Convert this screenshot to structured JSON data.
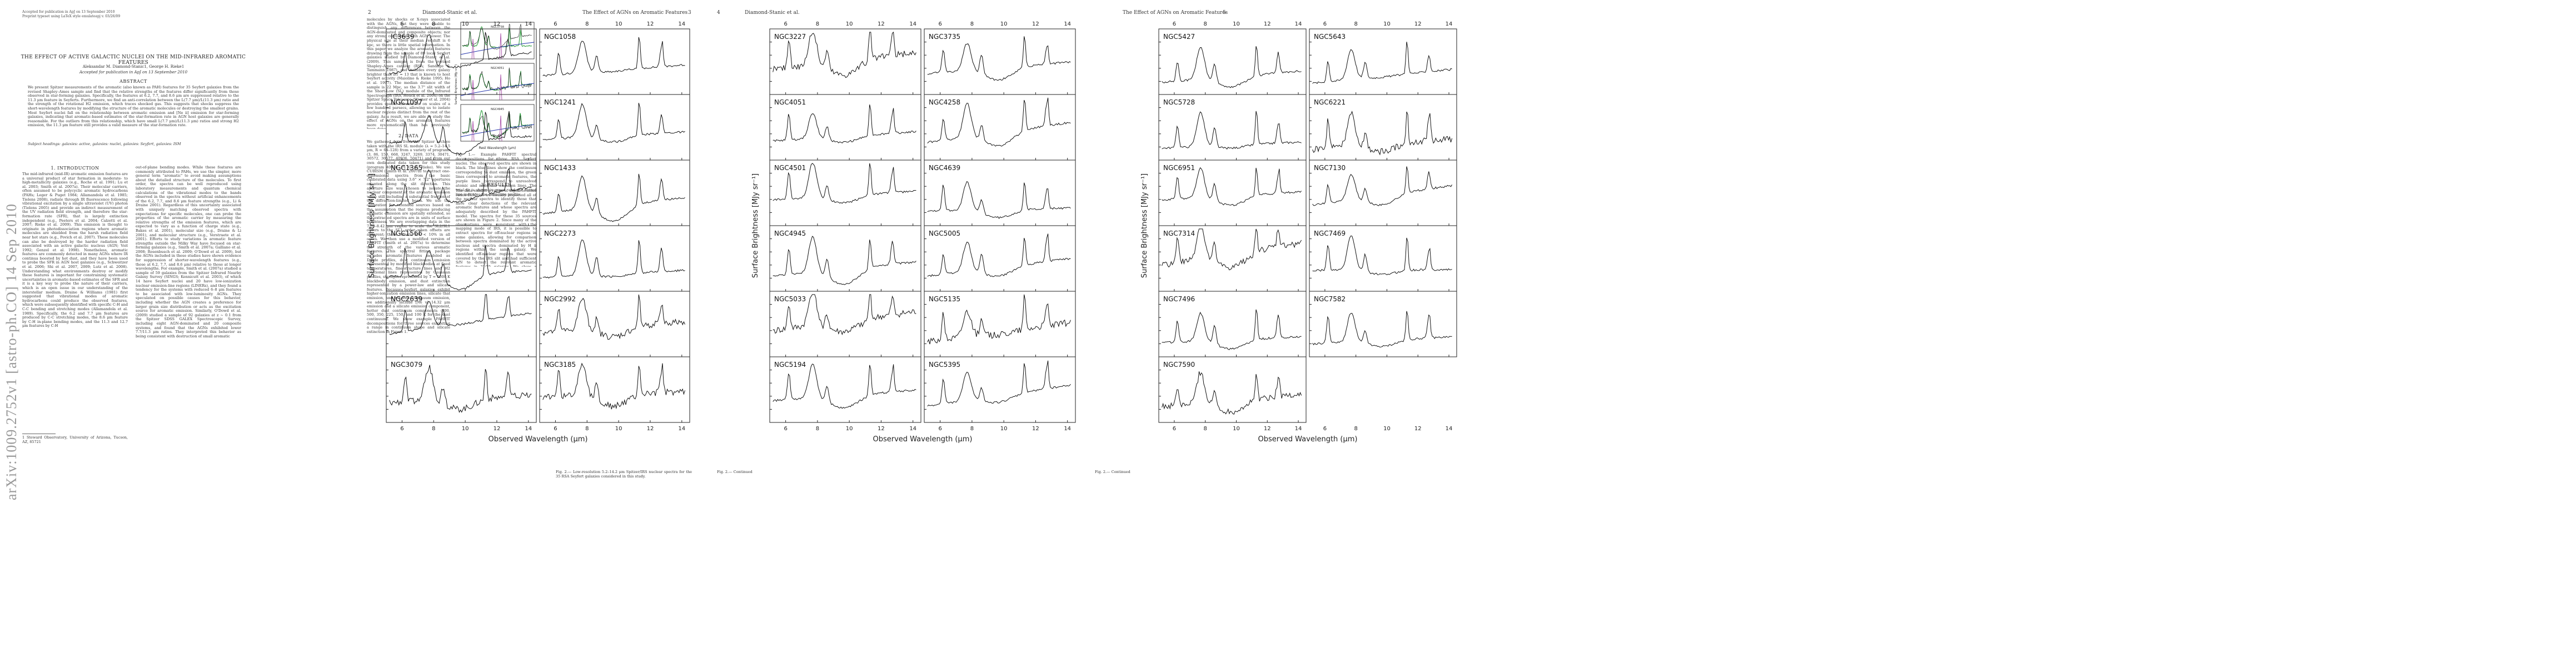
{
  "page1": {
    "accepted": "Accepted for publication in ApJ on 13 September 2010",
    "preprint": "Preprint typeset using LaTeX style emulateapj v. 03/26/09",
    "title": "THE EFFECT OF ACTIVE GALACTIC NUCLEI ON THE MID-INFRARED AROMATIC FEATURES",
    "authors": "Aleksandar M. Diamond-Stanic1, George H. Rieke1",
    "accepted_line": "Accepted for publication in ApJ on 13 September 2010",
    "abstract_heading": "ABSTRACT",
    "abstract": "We present Spitzer measurements of the aromatic (also known as PAH) features for 35 Seyfert galaxies from the revised Shapley–Ames sample and find that the relative strengths of the features differ significantly from those observed in star-forming galaxies. Specifically, the features at 6.2, 7.7, and 8.6 μm are suppressed relative to the 11.3 μm feature in Seyferts. Furthermore, we find an anti-correlation between the L(7.7 μm)/L(11.3 μm) ratio and the strength of the rotational H2 emission, which traces shocked gas. This suggests that shocks suppress the short-wavelength features by modifying the structure of the aromatic molecules or destroying the smallest grains. Most Seyfert nuclei fall on the relationship between aromatic emission and [Ne ii] emission for star-forming galaxies, indicating that aromatic-based estimates of the star-formation rate in AGN host galaxies are generally reasonable. For the outliers from this relationship, which have small L(7.7 μm)/L(11.3 μm) ratios and strong H2 emission, the 11.3 μm feature still provides a valid measure of the star-formation rate.",
    "keywords": "Subject headings: galaxies: active, galaxies: nuclei, galaxies: Seyfert, galaxies: ISM",
    "sec1_heading": "1. INTRODUCTION",
    "sec1_col1": "The mid-infrared (mid-IR) aromatic emission features are a universal product of star formation in moderate- to high-metallicity galaxies (e.g., Roche et al. 1991; Lu et al. 2003; Smith et al. 2007a). Their molecular carriers, often assumed to be polycyclic aromatic hydrocarbons (PAHs; Leger & Puget 1984; Allamandola et al. 1985; Tielens 2008), radiate through IR fluorescence following vibrational excitation by a single ultraviolet (UV) photon (Tielens 2005) and provide an indirect measurement of the UV radiation field strength, and therefore the star-formation rate (SFR), that is largely extinction independent (e.g., Peeters et al. 2004; Calzetti et al. 2007; Rieke et al. 2009). This emission is thought to originate in photodissociation regions where aromatic molecules are shielded from the harsh radiation field near hot stars (e.g., Povich et al. 2007). These molecules can also be destroyed by the harder radiation field associated with an active galactic nucleus (AGN; Voit 1992; Genzel et al. 1998). Nonetheless, aromatic features are commonly detected in many AGNs where IR continua boosted by hot dust, and they have been used to probe the SFR in AGN host galaxies (e.g., Schweitzer et al. 2006; Shi et al. 2007, 2009; Lutz et al. 2008). Understanding what environments destroy or modify these features is important for constraining systematic uncertainties in aromatic-based estimates of the SFR and it is a key way to probe the nature of their carriers, which is an open issue in our understanding of the interstellar medium. Draine & Williams (1981) first suggested that vibrational modes of aromatic hydrocarbons could produce the observed features, which were subsequently identified with specific C-H and C-C bending and stretching modes (Allamandola et al. 1989). Specifically, the 6.2 and 7.7 μm features are produced by C-C stretching modes, the 8.6 μm feature by C-H in-plane bending modes, and the 11.3 and 12.7 μm features by C-H",
    "sec1_col2": "out-of-plane bending modes. While these features are commonly attributed to PAHs, we use the simpler, more general term \"aromatic\" to avoid making assumptions about the detailed structure of the molecules. To first order, the spectra can be well reproduced using laboratory measurements and quantum chemical calculations of the vibrational modes to the bands observed in the spectra without artificial enhancements of the 6.2, 7.7, and 8.6 μm feature strengths (e.g., Li & Draine 2001). Regardless of this uncertainty associated with uniquely matching observed spectra with expectations for specific molecules, one can probe the properties of the aromatic carrier by measuring the relative strengths of the emission features, which are expected to vary as a function of charge state (e.g., Bakes et al. 2001), molecular size (e.g., Draine & Li 2001), and molecular structure (e.g., Verstraete et al. 2001). Efforts to study variations in aromatic feature strengths outside the Milky Way have focused on star-forming galaxies (e.g., Smith et al. 2007a; Galliano et al. 2008; Rosenbusch et al. 2009; O'Dowd et al. 2009), but the AGNs included in these studies have shown evidence for suppression of shorter-wavelength features (e.g., those at 6.2, 7.7, and 8.6 μm) relative to those at longer wavelengths. For example, Smith et al. (2007a) studied a sample of 59 galaxies from the Spitzer Infrared Nearby Galaxy Survey (SINGS; Kennicutt et al. 2003), of which 14 have Seyfert nuclei and 20 have low-ionization nuclear emission-line regions (LINERs), and they found a tendency for the systems with reduced 6–8 μm features to be associated with low-luminosity AGNs. They speculated on possible causes for this behavior, including whether the AGN creates a preference for larger grain size distribution or acts as the excitation source for aromatic emission. Similarly, O'Dowd et al. (2009) studied a sample of 92 galaxies at z ~ 0.1 from the Spitzer SDSS GALEX Spectroscopic Survey, including eight AGN-dominated and 20 composite systems, and found that the AGNs exhibited lower 7.7/11.3 μm ratios. They interpreted this behavior as being consistent with destruction of small aromatic",
    "footnote": "1 Steward Observatory, University of Arizona, Tucson, AZ, 85721"
  },
  "page2": {
    "page_number": "2",
    "running_head": "Diamond-Stanic et al.",
    "col1_intro": "molecules by shocks or X-rays associated with the AGNs, but they were unable to distinguish any differences between the AGN-dominated and composite objects; nor any strong correlation with AGN power. The physical size at their median redshift is 6 kpc, so there is little spatial information. In this paper we analyze the aromatic features drawing from the sample of 89 local Seyfert galaxies studied by Diamond-Stanic et al. (2009). This sample is from the revised Shapley–Ames catalog (RSA; Sandage & Tammann 1987), and includes every galaxy brighter than BT = 13 that is known to host Seyfert activity (Maiolino & Rieke 1995; Ho et al. 1997). The median distance of the sample is 22 Mpc, so the 3.7\" slit width of the Short-Low (SL) module of the Infrared Spectrograph (IRS, Houck et al. 2004) on the Spitzer Space Telescope (Werner et al. 2004) provides spatial information on scales of a few hundred parsecs, allowing us to isolate nuclear regions distinct from the rest of the galaxy. As a result, we are able to study the effect of AGNs on the aromatic features more systematically than has previously been done.",
    "sec2_heading": "2. DATA",
    "sec2_body": "We gathered data from the Spitzer archive taken with the IRS SL module (λ = 5.2–14.5 μm, R = 64–128) from a variety of programs (3, 86, 159, 668, 3247, 3269, 3374, 30471, 30572, 30577, 40936, 50471) and from our own dedicated data taken for this study (program 40936, PI: G. H. Rieke). We use CUBISM (Smith et al. 2007b) to extract one-dimensional spectra from the basic calibrated data using 3.6\" × 7.2\" apertures oriented along the slit direction. This aperture size was chosen to isolate the nuclear component of the aromatic emission while still including a substantial fraction of the diffraction-limited beam. We use the calibration for extended sources based on the assumption that the regions producing aromatic emission are spatially extended, so the extracted spectra are in units of surface brightness. We are overlapping data in the 7.59–8.42 μm region to scale the SL2/SL1 orders to the SL1 order when offsets are apparent; these offsets are < 10% in all cases. We then use a modified version of PAHFIT (Smith et al. 2007a) to determine the strength of the various aromatic features. This spectral fitting package includes aromatic features modeled as Drude profiles, dust continuum emission represented by modified blackbodies at fixed temperatures, fine-structure lines and H2 rotational lines represented by Gaussian profiles, starlight represented by T = 5000 K blackbody emission, and dust extinction represented by a power-law and silicate features. Because Seyfert galaxies exhibit higher-ionization emission lines, silicate that emission, and hot-dust continuum emission, we additionally include [Ne v] 14.32 μm emission and a silicate emission component, hotter dust continuum components (700, 500, 350, 225, 150, and 100 K for the dust continuum). We show example PAHFIT decompositions for three sources exhibiting a range in continuum shape and silicate extinction in Figure 1.",
    "fig1_panels": [
      "NGC3738",
      "NGC4051",
      "NGC4945"
    ],
    "fig1_xlabel": "Rest Wavelength (μm)",
    "fig1_ylabel": "Surface Brightness (MJy sr⁻¹)",
    "fig1_caption": "Fig. 1.— Example PAHFIT spectral decompositions for three RSA Seyfert nuclei. The observed spectra are shown in black. The blue lines show the continuum corresponding to dust emission, the green lines correspond to aromatic features, the purple lines correspond to unresolved atomic and molecular emission lines. The total fit is shown in green, and the dotted line indicates the extinction profile.",
    "sec3_heading": "3. RESULTS",
    "sec3_body": "The data exhibit a range of signal-to-noise ratios (S/N), so we visually inspected all of the nuclear spectra to identify those that have clear detections of the relevant aromatic features and whose spectra are adequately described by the PAHFIT model. The spectra for these 35 sources are shown in Figure 2. Since many of the observations were consistent with the mapping mode of IRS, it is possible to extract spectra for off-nuclear regions in some galaxies, allowing for comparison between spectra dominated by the active nucleus and spectra dominated by H ii regions within the same galaxy. We identified off-nuclear regions that were covered by the IRS slit and had sufficient S/N to detect the relevant aromatic features in 21/35 galaxies. We show a comparison between the nuclear and off-nuclear extractions for these galaxies in Figure 3, and we compile relevant measurements in Tables 1 and 2."
  },
  "page3": {
    "running_head": "The Effect of AGNs on Aromatic Features",
    "page_number": "3",
    "caption": "Fig. 2.— Low-resolution 5.2–14.2 μm Spitzer/IRS nuclear spectra for the 35 RSA Seyfert galaxies considered in this study."
  },
  "page4": {
    "page_number": "4",
    "running_head": "Diamond-Stanic et al.",
    "caption": "Fig. 2.— Continued"
  },
  "page5": {
    "running_head": "The Effect of AGNs on Aromatic Features",
    "page_number": "5",
    "caption": "Fig. 2.— Continued"
  },
  "figure2": {
    "x_ticks": [
      "6",
      "8",
      "10",
      "12",
      "14"
    ],
    "xlabel": "Observed Wavelength (μm)",
    "ylabel": "Surface Brightness [MJy sr⁻¹]",
    "page3_galaxies": [
      "IC3639",
      "NGC1058",
      "NGC1097",
      "NGC1241",
      "NGC1365",
      "NGC1433",
      "NGC1566",
      "NGC2273",
      "NGC2639",
      "NGC2992",
      "NGC3079",
      "NGC3185"
    ],
    "page4_galaxies": [
      "NGC3227",
      "NGC3735",
      "NGC4051",
      "NGC4258",
      "NGC4501",
      "NGC4639",
      "NGC4945",
      "NGC5005",
      "NGC5033",
      "NGC5135",
      "NGC5194",
      "NGC5395"
    ],
    "page5_galaxies": [
      "NGC5427",
      "NGC5643",
      "NGC5728",
      "NGC6221",
      "NGC6951",
      "NGC7130",
      "NGC7314",
      "NGC7469",
      "NGC7496",
      "NGC7582",
      "NGC7590"
    ]
  },
  "arxiv_stamp": "arXiv:1009.2752v1 [astro-ph.CO] 14 Sep 2010",
  "colors": {
    "text": "#333333",
    "frame": "#222222",
    "spectrum": "#111111",
    "continuum": "#2233aa",
    "aromatic": "#229933",
    "lines": "#993399",
    "stamp": "#999999"
  }
}
